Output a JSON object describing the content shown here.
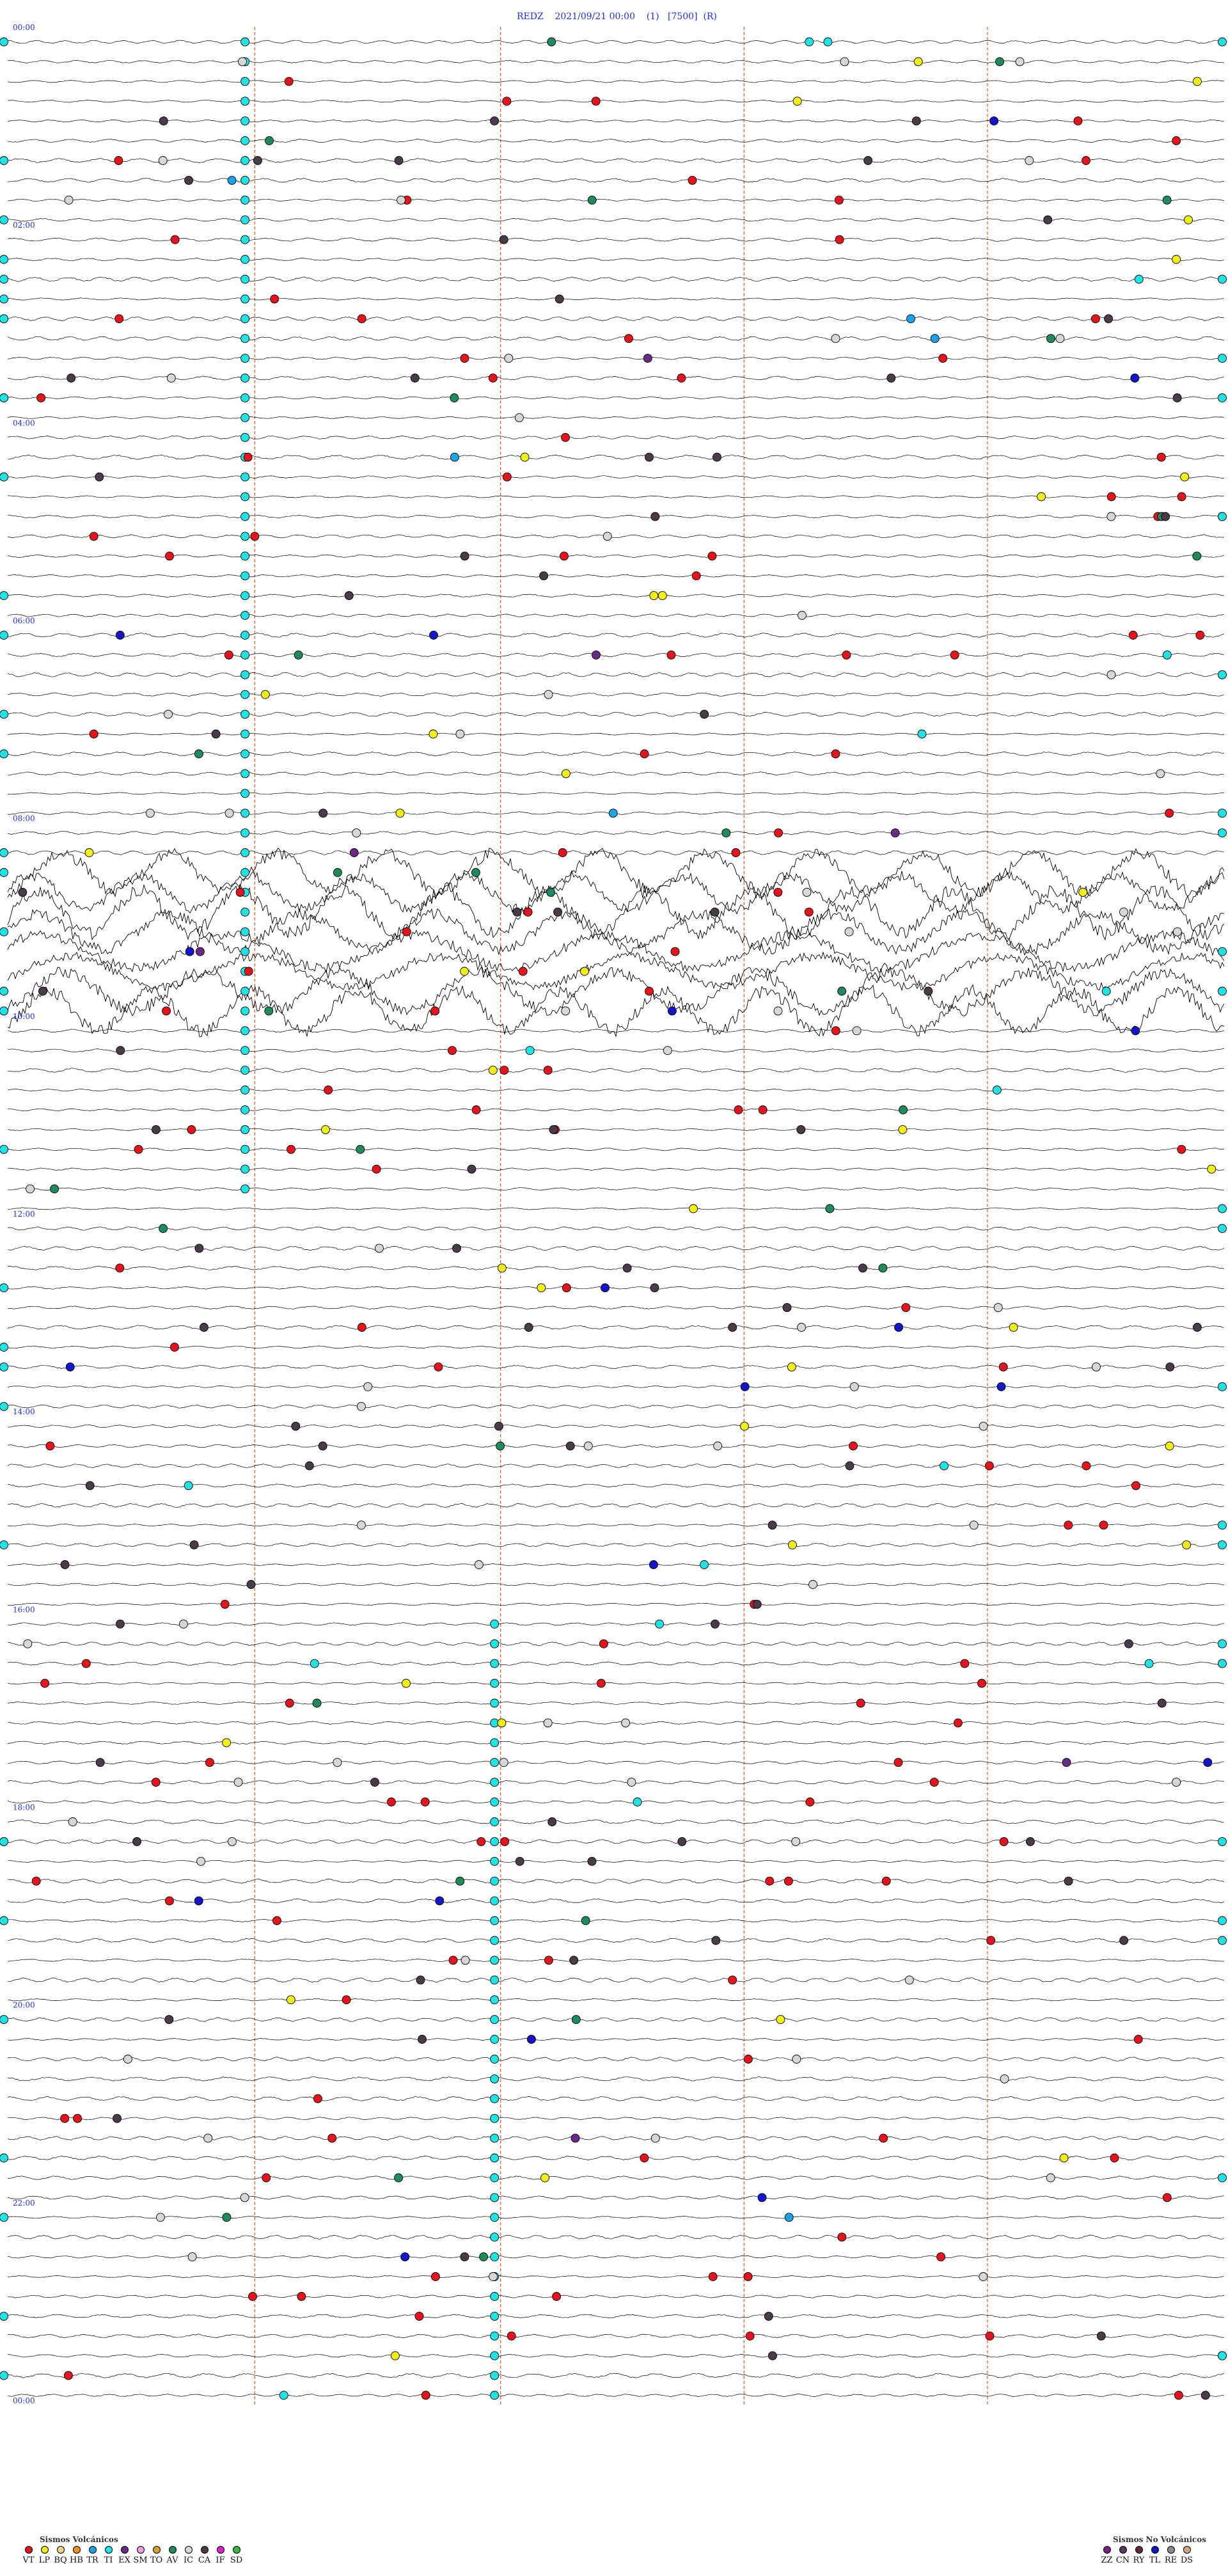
{
  "header": {
    "station": "REDZ",
    "datetime": "2021/09/21 00:00",
    "page": "(1)",
    "scale": "[7500]",
    "mode": "(R)"
  },
  "chart_data": {
    "type": "helicorder",
    "time_labels": [
      "00:00",
      "02:00",
      "04:00",
      "06:00",
      "08:00",
      "10:00",
      "12:00",
      "14:00",
      "16:00",
      "18:00",
      "20:00",
      "22:00",
      "00:00"
    ],
    "traces_per_hour": 5,
    "hours": 24,
    "marker_columns_cyan": [
      {
        "hour_start": 0.0,
        "hour_end": 11.8,
        "x_fraction": 0.195
      },
      {
        "hour_start": 16.0,
        "hour_end": 24.0,
        "x_fraction": 0.4
      }
    ],
    "noisy_intervals_hours": [
      [
        8.4,
        10.0
      ]
    ],
    "vertical_guides_fraction": [
      0.203,
      0.405,
      0.605,
      0.805
    ],
    "colors": {
      "trace": "#000000",
      "guide": "#e06a3a",
      "time_label": "#1f2fd6",
      "VT": "#e3141e",
      "LP": "#f2ee1a",
      "BQ": "#f2d38b",
      "HB": "#f08f1e",
      "TR": "#1ba3e6",
      "TI": "#22e3e3",
      "EX": "#6a2a86",
      "SM": "#e8a0d8",
      "TO": "#d8a030",
      "AV": "#1f8a5c",
      "IC": "#d7d7d7",
      "CA": "#4a3a4a",
      "IF": "#e01fd6",
      "SD": "#3ab83a",
      "ZZ": "#7a1f8a",
      "CN": "#5a3a5a",
      "RY": "#5a2a3a",
      "TL": "#1414c8",
      "RE": "#8a8a8a",
      "DS": "#c8a88a"
    }
  },
  "legend_volcanic": {
    "title": "Sismos Volcánicos",
    "items": [
      {
        "code": "VT",
        "color": "#e3141e"
      },
      {
        "code": "LP",
        "color": "#f2ee1a"
      },
      {
        "code": "BQ",
        "color": "#f2d38b"
      },
      {
        "code": "HB",
        "color": "#f08f1e"
      },
      {
        "code": "TR",
        "color": "#1ba3e6"
      },
      {
        "code": "TI",
        "color": "#22e3e3"
      },
      {
        "code": "EX",
        "color": "#6a2a86"
      },
      {
        "code": "SM",
        "color": "#e8a0d8"
      },
      {
        "code": "TO",
        "color": "#d8a030"
      },
      {
        "code": "AV",
        "color": "#1f8a5c"
      },
      {
        "code": "IC",
        "color": "#d7d7d7"
      },
      {
        "code": "CA",
        "color": "#4a3a4a"
      },
      {
        "code": "IF",
        "color": "#e01fd6"
      },
      {
        "code": "SD",
        "color": "#3ab83a"
      }
    ]
  },
  "legend_nonvolcanic": {
    "title": "Sismos No Volcánicos",
    "items": [
      {
        "code": "ZZ",
        "color": "#7a1f8a"
      },
      {
        "code": "CN",
        "color": "#5a3a5a"
      },
      {
        "code": "RY",
        "color": "#5a2a3a"
      },
      {
        "code": "TL",
        "color": "#1414c8"
      },
      {
        "code": "RE",
        "color": "#8a8a8a"
      },
      {
        "code": "DS",
        "color": "#c8a88a"
      }
    ]
  }
}
